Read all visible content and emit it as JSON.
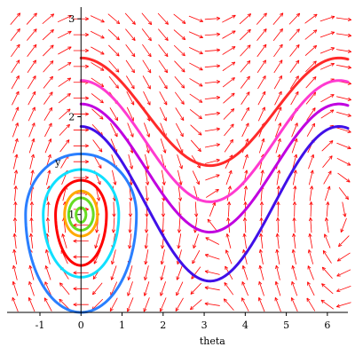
{
  "chart_data": {
    "type": "phase-portrait",
    "xlabel": "theta",
    "ylabel": "y",
    "xlim": [
      -1.8,
      6.5
    ],
    "ylim": [
      0.0,
      3.12
    ],
    "xticks": [
      -1,
      0,
      1,
      2,
      3,
      4,
      5,
      6
    ],
    "yticks": [
      1,
      2,
      3
    ],
    "xtick_labels": [
      "-1",
      "0",
      "1",
      "2",
      "3",
      "4",
      "5",
      "6"
    ],
    "ytick_labels": [
      "1",
      "2",
      "3"
    ],
    "field": {
      "description": "direction field arrows",
      "color": "#ff0000",
      "x_range": [
        -1.6,
        6.4
      ],
      "y_range": [
        0.08,
        3.0
      ],
      "grid": [
        21,
        19
      ]
    },
    "series": [
      {
        "kind": "open",
        "color": "#ff2a2a",
        "y_at_0": 2.6,
        "y_at_pi": 1.5
      },
      {
        "kind": "open",
        "color": "#ff3ad0",
        "y_at_0": 2.37,
        "y_at_pi": 1.13
      },
      {
        "kind": "open",
        "color": "#c000e0",
        "y_at_0": 2.13,
        "y_at_pi": 0.82
      },
      {
        "kind": "open",
        "color": "#4010e8",
        "y_at_0": 1.9,
        "y_at_pi": 0.32
      },
      {
        "kind": "closed",
        "color": "#2a7fff",
        "center": [
          0,
          1
        ],
        "theta_half_width": 1.35,
        "y_top": 1.62,
        "y_bottom": 0.0
      },
      {
        "kind": "closed",
        "color": "#10e0ff",
        "center": [
          0,
          1
        ],
        "theta_half_width": 0.92,
        "y_top": 1.46,
        "y_bottom": 0.36
      },
      {
        "kind": "closed",
        "color": "#ff0000",
        "center": [
          0,
          1
        ],
        "theta_half_width": 0.62,
        "y_top": 1.35,
        "y_bottom": 0.48
      },
      {
        "kind": "closed",
        "color": "#ffaa00",
        "center": [
          0,
          1
        ],
        "theta_half_width": 0.4,
        "y_top": 1.24,
        "y_bottom": 0.78
      },
      {
        "kind": "closed",
        "color": "#66dd22",
        "center": [
          0,
          1
        ],
        "theta_half_width": 0.3,
        "y_top": 1.17,
        "y_bottom": 0.84
      },
      {
        "kind": "closed",
        "color": "#66dd22",
        "center": [
          0,
          1
        ],
        "theta_half_width": 0.12,
        "y_top": 1.07,
        "y_bottom": 0.92
      }
    ]
  }
}
